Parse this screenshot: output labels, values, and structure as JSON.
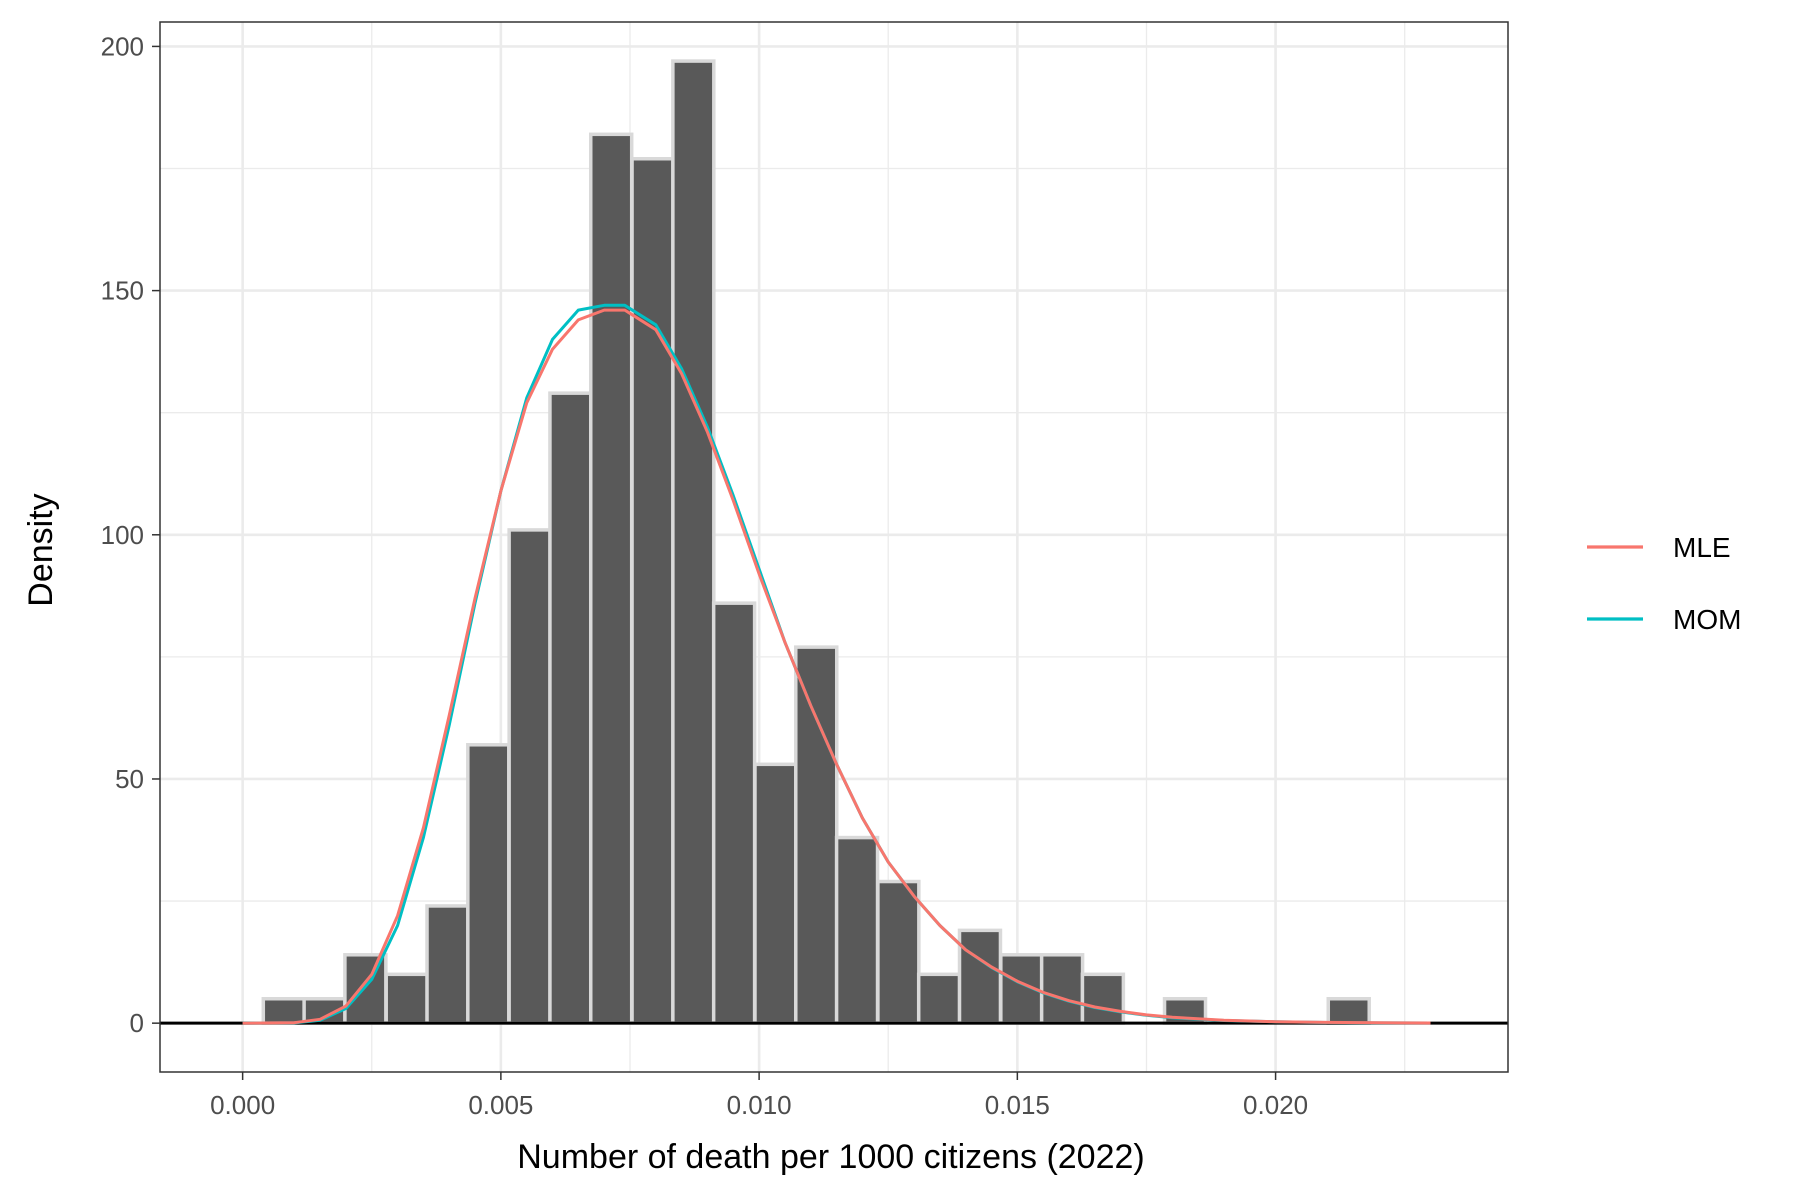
{
  "chart_data": {
    "type": "bar",
    "xlabel": "Number of death per 1000 citizens (2022)",
    "ylabel": "Density",
    "xlim": [
      -0.0016,
      0.0245
    ],
    "ylim": [
      -10,
      205
    ],
    "x_ticks": [
      0.0,
      0.005,
      0.01,
      0.015,
      0.02
    ],
    "x_tick_labels": [
      "0.000",
      "0.005",
      "0.010",
      "0.015",
      "0.020"
    ],
    "y_ticks": [
      0,
      50,
      100,
      150,
      200
    ],
    "y_tick_labels": [
      "0",
      "50",
      "100",
      "150",
      "200"
    ],
    "grid": true,
    "bin_width": 0.000793,
    "bin_starts": [
      0.0004,
      0.00119,
      0.00198,
      0.00278,
      0.00357,
      0.00436,
      0.00516,
      0.00595,
      0.00674,
      0.00754,
      0.00833,
      0.00912,
      0.00992,
      0.01071,
      0.0115,
      0.0123,
      0.01309,
      0.01388,
      0.01468,
      0.01547,
      0.01626,
      0.01706,
      0.01785,
      0.01864,
      0.01944,
      0.02023,
      0.02102
    ],
    "values": [
      5,
      5,
      14,
      10,
      24,
      57,
      101,
      129,
      182,
      177,
      197,
      86,
      53,
      77,
      38,
      29,
      10,
      19,
      14,
      14,
      10,
      0,
      5,
      0,
      0,
      0,
      5
    ],
    "series": [
      {
        "name": "MLE",
        "color": "#F8766D",
        "x": [
          0.0,
          0.001,
          0.0015,
          0.002,
          0.0025,
          0.003,
          0.0035,
          0.004,
          0.0045,
          0.005,
          0.0055,
          0.006,
          0.0065,
          0.007,
          0.0074,
          0.008,
          0.0085,
          0.009,
          0.0095,
          0.01,
          0.0105,
          0.011,
          0.0115,
          0.012,
          0.0125,
          0.013,
          0.0135,
          0.014,
          0.0145,
          0.015,
          0.0155,
          0.016,
          0.0165,
          0.017,
          0.0175,
          0.018,
          0.019,
          0.02,
          0.021,
          0.022,
          0.023
        ],
        "values": [
          0,
          0.1,
          0.8,
          3.5,
          10,
          22,
          40,
          63,
          87,
          109,
          127,
          138,
          144,
          146,
          146,
          142,
          133,
          121,
          107,
          92,
          78,
          65,
          53,
          42,
          33,
          26,
          20,
          15,
          11.5,
          8.6,
          6.3,
          4.6,
          3.3,
          2.4,
          1.7,
          1.2,
          0.6,
          0.3,
          0.15,
          0.07,
          0.03
        ]
      },
      {
        "name": "MOM",
        "color": "#00BFC4",
        "x": [
          0.0,
          0.001,
          0.0015,
          0.002,
          0.0025,
          0.003,
          0.0035,
          0.004,
          0.0045,
          0.005,
          0.0055,
          0.006,
          0.0065,
          0.007,
          0.0074,
          0.008,
          0.0085,
          0.009,
          0.0095,
          0.01,
          0.0105,
          0.011,
          0.0115,
          0.012,
          0.0125,
          0.013,
          0.0135,
          0.014,
          0.0145,
          0.015,
          0.0155,
          0.016,
          0.0165,
          0.017,
          0.0175,
          0.018,
          0.019,
          0.02,
          0.021,
          0.022,
          0.023
        ],
        "values": [
          0,
          0.05,
          0.6,
          3,
          9,
          20,
          38,
          61,
          86,
          109,
          128,
          140,
          146,
          147,
          147,
          143,
          134,
          122,
          108,
          93,
          78,
          65,
          53,
          42,
          33,
          26,
          20,
          15,
          11.4,
          8.5,
          6.2,
          4.5,
          3.2,
          2.3,
          1.6,
          1.1,
          0.55,
          0.27,
          0.13,
          0.06,
          0.03
        ]
      }
    ],
    "legend": {
      "position": "right",
      "entries": [
        "MLE",
        "MOM"
      ]
    },
    "colors": {
      "bar_fill": "#595959",
      "bar_edge": "#d9d9d9",
      "grid": "#ebebeb",
      "panel_border": "#333333",
      "baseline": "#000000"
    }
  }
}
